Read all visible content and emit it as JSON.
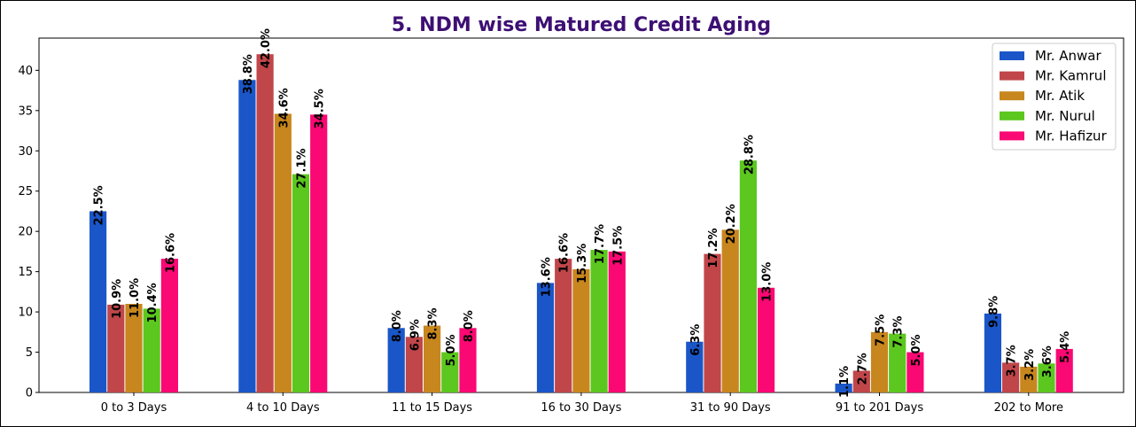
{
  "chart_data": {
    "type": "bar",
    "title": "5. NDM wise Matured Credit Aging",
    "xlabel": "",
    "ylabel": "",
    "ylim": [
      0,
      44
    ],
    "yticks": [
      0,
      5,
      10,
      15,
      20,
      25,
      30,
      35,
      40
    ],
    "grid": false,
    "legend_position": "top-right",
    "categories": [
      "0 to 3 Days",
      "4 to 10 Days",
      "11 to 15 Days",
      "16 to 30 Days",
      "31 to 90 Days",
      "91 to 201 Days",
      "202 to More"
    ],
    "series": [
      {
        "name": "Mr. Anwar",
        "color": "#1a56c8",
        "values": [
          22.5,
          38.8,
          8.0,
          13.6,
          6.3,
          1.1,
          9.8
        ],
        "labels": [
          "22.5%",
          "38.8%",
          "8.0%",
          "13.6%",
          "6.3%",
          "1.1%",
          "9.8%"
        ]
      },
      {
        "name": "Mr. Kamrul",
        "color": "#c0464a",
        "values": [
          10.9,
          42.0,
          6.9,
          16.6,
          17.2,
          2.7,
          3.7
        ],
        "labels": [
          "10.9%",
          "42.0%",
          "6.9%",
          "16.6%",
          "17.2%",
          "2.7%",
          "3.7%"
        ]
      },
      {
        "name": "Mr. Atik",
        "color": "#c8861e",
        "values": [
          11.0,
          34.6,
          8.3,
          15.3,
          20.2,
          7.5,
          3.2
        ],
        "labels": [
          "11.0%",
          "34.6%",
          "8.3%",
          "15.3%",
          "20.2%",
          "7.5%",
          "3.2%"
        ]
      },
      {
        "name": "Mr. Nurul",
        "color": "#5cc71e",
        "values": [
          10.4,
          27.1,
          5.0,
          17.7,
          28.8,
          7.3,
          3.6
        ],
        "labels": [
          "10.4%",
          "27.1%",
          "5.0%",
          "17.7%",
          "28.8%",
          "7.3%",
          "3.6%"
        ]
      },
      {
        "name": "Mr. Hafizur",
        "color": "#fa0873",
        "values": [
          16.6,
          34.5,
          8.0,
          17.5,
          13.0,
          5.0,
          5.4
        ],
        "labels": [
          "16.6%",
          "34.5%",
          "8.0%",
          "17.5%",
          "13.0%",
          "5.0%",
          "5.4%"
        ]
      }
    ]
  }
}
